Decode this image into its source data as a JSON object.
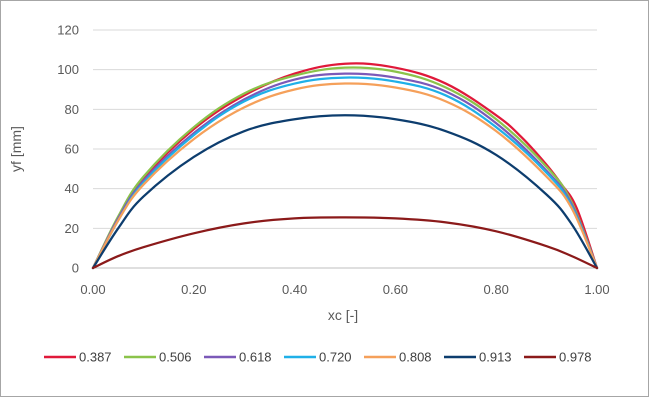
{
  "chart_data": {
    "type": "line",
    "title": "",
    "xlabel": "xc [-]",
    "ylabel": "yf [mm]",
    "xlim": [
      0,
      1
    ],
    "ylim": [
      0,
      120
    ],
    "x_ticks": [
      0.0,
      0.2,
      0.4,
      0.6,
      0.8,
      1.0
    ],
    "x_tick_labels": [
      "0.00",
      "0.20",
      "0.40",
      "0.60",
      "0.80",
      "1.00"
    ],
    "y_ticks": [
      0,
      20,
      40,
      60,
      80,
      100,
      120
    ],
    "y_tick_labels": [
      "0",
      "20",
      "40",
      "60",
      "80",
      "100",
      "120"
    ],
    "grid": "horizontal",
    "legend_position": "bottom",
    "series": [
      {
        "name": "0.387",
        "color": "#e0193a",
        "x": [
          0,
          0.05,
          0.1,
          0.2,
          0.3,
          0.4,
          0.5,
          0.6,
          0.7,
          0.8,
          0.85,
          0.9,
          0.93,
          0.96,
          1.0
        ],
        "y": [
          0,
          25,
          45,
          70,
          87,
          98,
          103,
          101,
          93,
          77,
          66,
          52,
          42,
          30,
          0
        ]
      },
      {
        "name": "0.506",
        "color": "#8bc34a",
        "x": [
          0,
          0.05,
          0.1,
          0.2,
          0.3,
          0.4,
          0.5,
          0.6,
          0.7,
          0.8,
          0.9,
          0.95,
          1.0
        ],
        "y": [
          0,
          26,
          46,
          71,
          88,
          97,
          101,
          99,
          91,
          75,
          51,
          33,
          0
        ]
      },
      {
        "name": "0.618",
        "color": "#7b59b8",
        "x": [
          0,
          0.05,
          0.1,
          0.2,
          0.3,
          0.4,
          0.5,
          0.6,
          0.7,
          0.8,
          0.9,
          0.95,
          1.0
        ],
        "y": [
          0,
          25,
          44,
          68,
          85,
          95,
          98,
          96,
          89,
          73,
          49,
          32,
          0
        ]
      },
      {
        "name": "0.720",
        "color": "#1fb0e8",
        "x": [
          0,
          0.05,
          0.1,
          0.2,
          0.3,
          0.4,
          0.5,
          0.6,
          0.7,
          0.8,
          0.9,
          0.95,
          1.0
        ],
        "y": [
          0,
          24,
          43,
          67,
          84,
          93,
          96,
          94,
          87,
          71,
          48,
          31,
          0
        ]
      },
      {
        "name": "0.808",
        "color": "#f5a05a",
        "x": [
          0,
          0.05,
          0.1,
          0.2,
          0.3,
          0.4,
          0.5,
          0.6,
          0.7,
          0.8,
          0.9,
          0.95,
          1.0
        ],
        "y": [
          0,
          24,
          42,
          65,
          81,
          90,
          93,
          91,
          84,
          69,
          46,
          30,
          0
        ]
      },
      {
        "name": "0.913",
        "color": "#0d3d6e",
        "x": [
          0,
          0.05,
          0.1,
          0.2,
          0.3,
          0.4,
          0.5,
          0.6,
          0.7,
          0.8,
          0.9,
          0.95,
          1.0
        ],
        "y": [
          0,
          20,
          36,
          56,
          69,
          75,
          77,
          75,
          69,
          57,
          37,
          22,
          0
        ]
      },
      {
        "name": "0.978",
        "color": "#8b1a1a",
        "x": [
          0,
          0.05,
          0.1,
          0.2,
          0.3,
          0.4,
          0.5,
          0.6,
          0.7,
          0.8,
          0.9,
          0.95,
          1.0
        ],
        "y": [
          0,
          6,
          10.5,
          17.5,
          22.5,
          25,
          25.5,
          25,
          23,
          18.5,
          11,
          6,
          0
        ]
      }
    ]
  }
}
